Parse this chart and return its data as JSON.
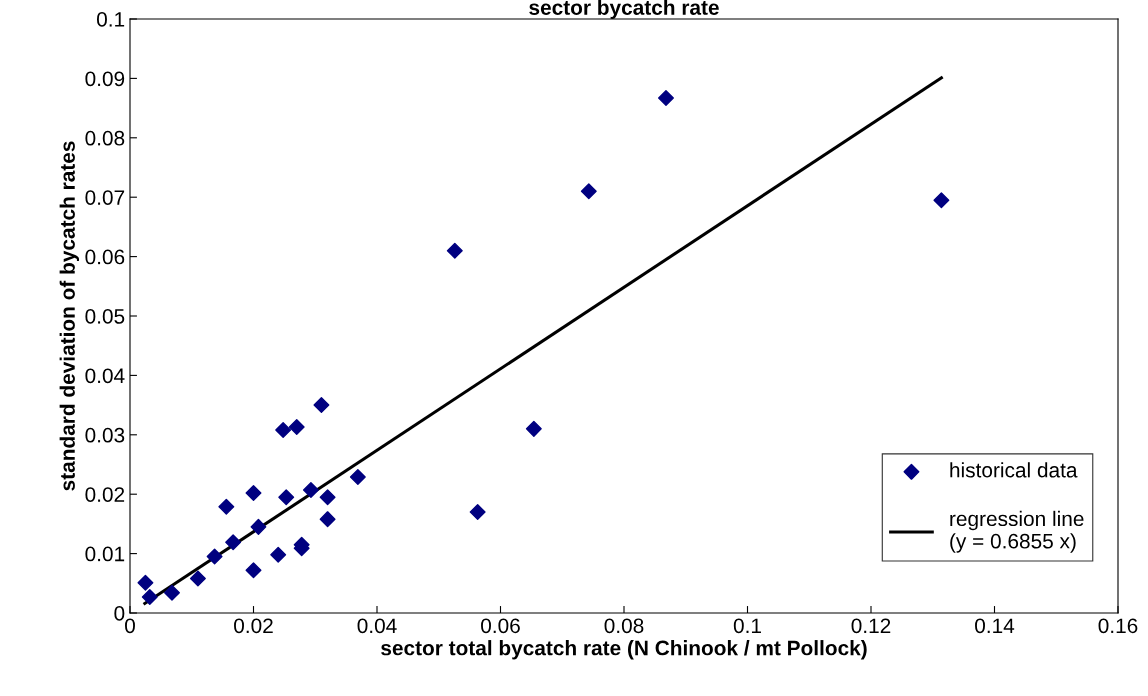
{
  "chart_data": {
    "type": "scatter",
    "title": "sector bycatch rate",
    "xlabel": "sector total bycatch rate (N Chinook / mt Pollock)",
    "ylabel": "standard deviation of bycatch rates",
    "series": [
      {
        "name": "historical data",
        "color": "#000080",
        "marker": "diamond",
        "x": [
          0.0025,
          0.0032,
          0.0068,
          0.011,
          0.0137,
          0.0167,
          0.0156,
          0.02,
          0.02,
          0.0208,
          0.024,
          0.0248,
          0.0253,
          0.027,
          0.0278,
          0.0278,
          0.0293,
          0.031,
          0.032,
          0.032,
          0.0369,
          0.0526,
          0.0563,
          0.0654,
          0.0743,
          0.0868,
          0.1314
        ],
        "values": [
          0.0051,
          0.0027,
          0.0034,
          0.0058,
          0.0095,
          0.0119,
          0.0179,
          0.0072,
          0.0202,
          0.0145,
          0.0098,
          0.0308,
          0.0195,
          0.0313,
          0.0115,
          0.0109,
          0.0207,
          0.035,
          0.0195,
          0.0158,
          0.0229,
          0.061,
          0.017,
          0.031,
          0.071,
          0.0867,
          0.0695
        ]
      },
      {
        "name": "regression line\n(y = 0.6855 x)",
        "type": "line",
        "color": "#000000",
        "marker": "none",
        "line_style": "solid",
        "x": [
          0.0024,
          0.1314
        ],
        "values": [
          0.0016,
          0.0901
        ]
      }
    ],
    "xlim": [
      0,
      0.16
    ],
    "xticks": [
      0,
      0.02,
      0.04,
      0.06,
      0.08,
      0.1,
      0.12,
      0.14,
      0.16
    ],
    "ylim": [
      0,
      0.1
    ],
    "yticks": [
      0,
      0.01,
      0.02,
      0.03,
      0.04,
      0.05,
      0.06,
      0.07,
      0.08,
      0.09,
      0.1
    ],
    "grid": false,
    "legend": "bottom right"
  }
}
